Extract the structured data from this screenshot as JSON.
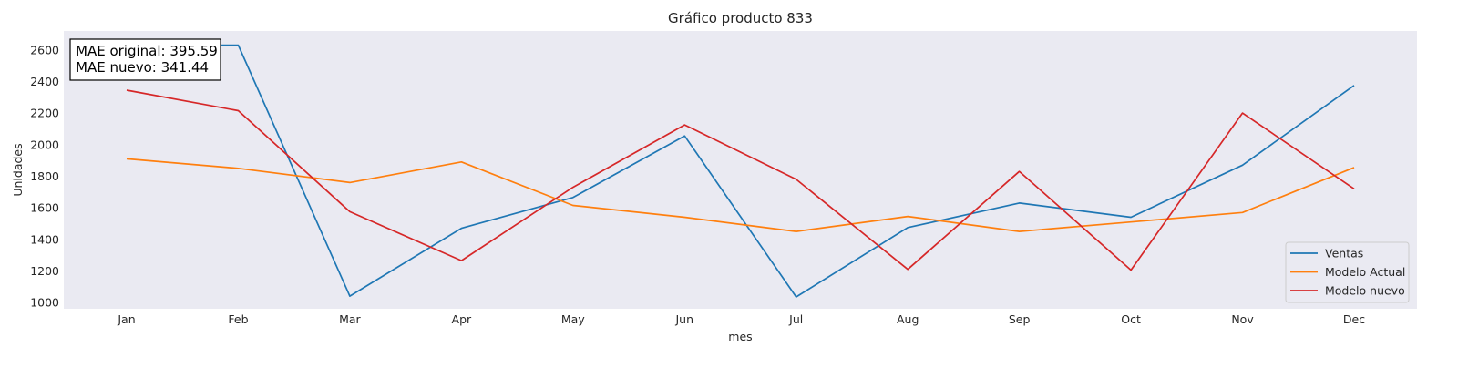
{
  "chart_data": {
    "type": "line",
    "title": "Gráfico producto 833",
    "xlabel": "mes",
    "ylabel": "Unidades",
    "categories": [
      "Jan",
      "Feb",
      "Mar",
      "Apr",
      "May",
      "Jun",
      "Jul",
      "Aug",
      "Sep",
      "Oct",
      "Nov",
      "Dec"
    ],
    "ylim": [
      960,
      2720
    ],
    "yticks": [
      1000,
      1200,
      1400,
      1600,
      1800,
      2000,
      2200,
      2400,
      2600
    ],
    "grid": false,
    "legend_position": "bottom-right",
    "series": [
      {
        "name": "Ventas",
        "color": "#1f77b4",
        "values": [
          2630,
          2630,
          1040,
          1470,
          1665,
          2055,
          1035,
          1475,
          1630,
          1540,
          1870,
          2375
        ]
      },
      {
        "name": "Modelo Actual",
        "color": "#ff7f0e",
        "values": [
          1910,
          1850,
          1760,
          1890,
          1615,
          1540,
          1450,
          1545,
          1450,
          1510,
          1570,
          1855
        ]
      },
      {
        "name": "Modelo nuevo",
        "color": "#d62728",
        "values": [
          2345,
          2215,
          1575,
          1265,
          1730,
          2125,
          1780,
          1210,
          1830,
          1205,
          2200,
          1720
        ]
      }
    ],
    "annotation": {
      "lines": [
        "MAE original: 395.59",
        "MAE nuevo: 341.44"
      ],
      "position": "top-left"
    }
  },
  "colors": {
    "plot_background": "#eaeaf2",
    "annotation_border": "#000000"
  }
}
